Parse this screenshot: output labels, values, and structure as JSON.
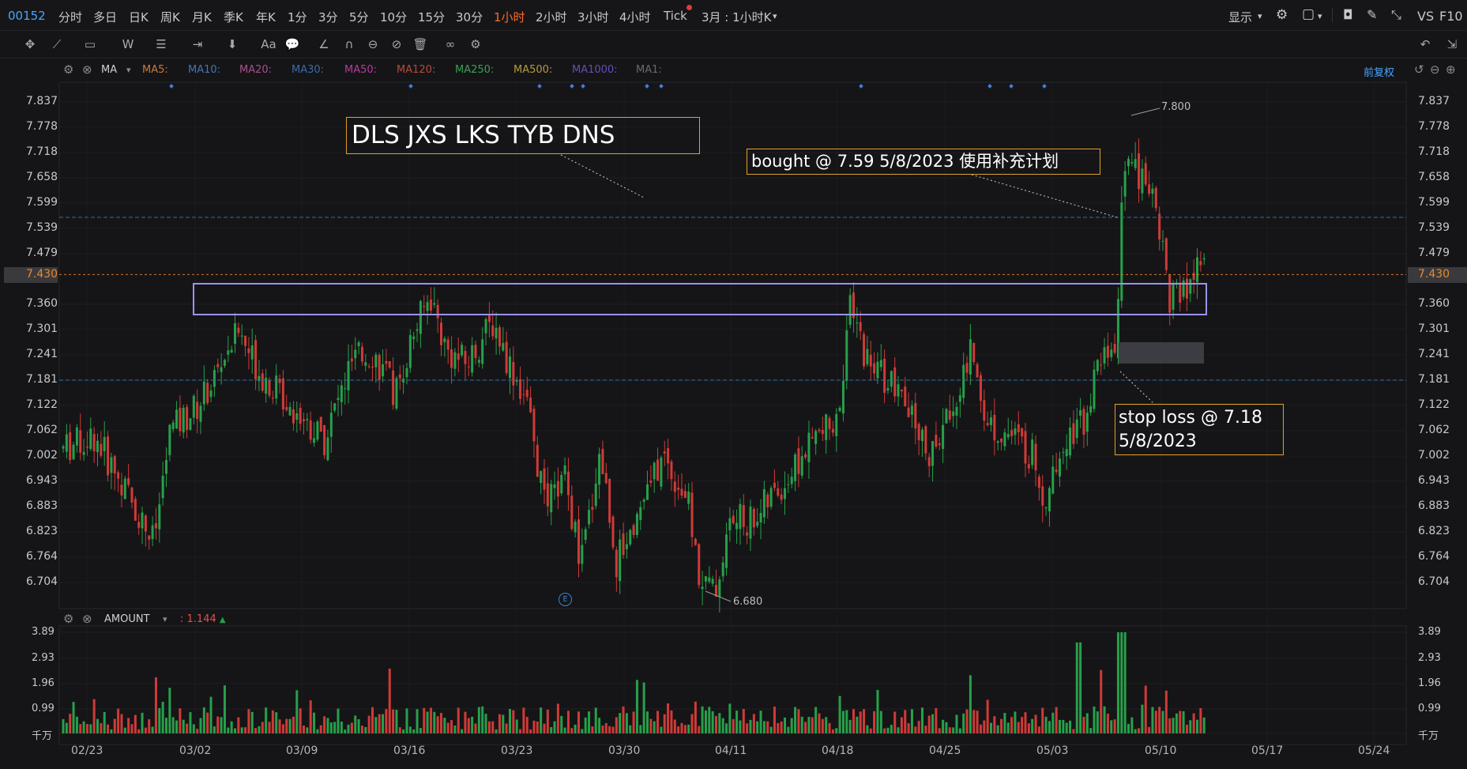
{
  "header": {
    "symbol": "00152",
    "timeframes": [
      "分时",
      "多日",
      "日K",
      "周K",
      "月K",
      "季K",
      "年K",
      "1分",
      "3分",
      "5分",
      "10分",
      "15分",
      "30分",
      "1小时",
      "2小时",
      "3小时",
      "4小时",
      "Tick"
    ],
    "active_timeframe": "1小时",
    "range_label": "3月 : 1小时K",
    "display_label": "显示",
    "vs_label": "VS",
    "f10_label": "F10"
  },
  "ma_row": {
    "label": "MA",
    "items": [
      {
        "label": "MA5:",
        "color": "#c97a3b"
      },
      {
        "label": "MA10:",
        "color": "#3f78b8"
      },
      {
        "label": "MA20:",
        "color": "#a8508c"
      },
      {
        "label": "MA30:",
        "color": "#3a6ab0"
      },
      {
        "label": "MA50:",
        "color": "#b83a9c"
      },
      {
        "label": "MA120:",
        "color": "#b84a3a"
      },
      {
        "label": "MA250:",
        "color": "#3aa055"
      },
      {
        "label": "MA500:",
        "color": "#b89a3a"
      },
      {
        "label": "MA1000:",
        "color": "#6a4ab8"
      },
      {
        "label": "MA1:",
        "color": "#6a6a6a"
      }
    ],
    "adjust_label": "前复权"
  },
  "price_axis": {
    "ticks": [
      "7.837",
      "7.778",
      "7.718",
      "7.658",
      "7.599",
      "7.539",
      "7.479",
      "7.430",
      "7.360",
      "7.301",
      "7.241",
      "7.181",
      "7.122",
      "7.062",
      "7.002",
      "6.943",
      "6.883",
      "6.823",
      "6.764",
      "6.704"
    ],
    "current_price": "7.430",
    "high_label": "7.800",
    "low_label": "6.680",
    "event_marker": "E"
  },
  "volume_panel": {
    "label": "AMOUNT",
    "value": "1.144",
    "ticks": [
      "3.89",
      "2.93",
      "1.96",
      "0.99",
      "千万"
    ]
  },
  "date_axis": [
    "02/23",
    "03/02",
    "03/09",
    "03/16",
    "03/23",
    "03/30",
    "04/11",
    "04/18",
    "04/25",
    "05/03",
    "05/10",
    "05/17",
    "05/24"
  ],
  "annotations": {
    "title_box": "DLS JXS LKS TYB DNS",
    "bought_box": "bought @ 7.59 5/8/2023 使用补充计划",
    "stop_loss_line1": "stop loss @ 7.18",
    "stop_loss_line2": "5/8/2023"
  },
  "colors": {
    "up": "#27a04a",
    "down": "#cf3b37",
    "active_tab": "#ff6a2a",
    "annotation_border": "#e3a028",
    "resistance_box": "#9a93f2"
  }
}
